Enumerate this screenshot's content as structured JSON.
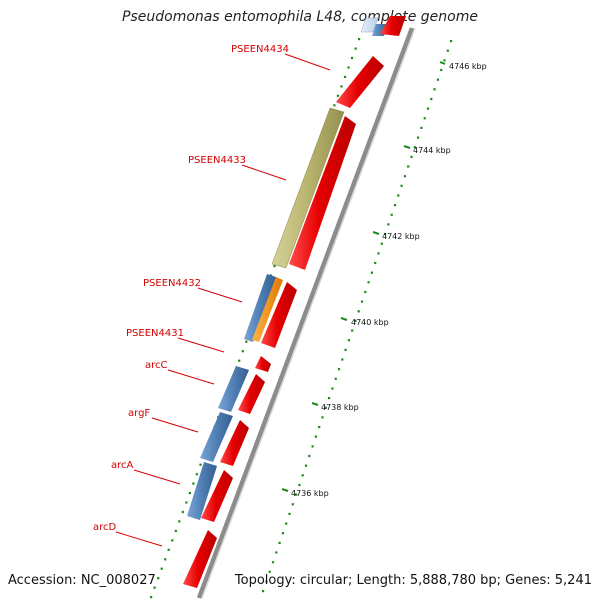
{
  "title": "Pseudomonas entomophila L48, complete genome",
  "footer": {
    "accession": "Accession: NC_008027",
    "topology": "Topology: circular; Length: 5,888,780 bp; Genes: 5,241"
  },
  "colors": {
    "label": "#d60000",
    "tick": "#1e8a1e",
    "forward_gene": "#e60000",
    "reverse_blue": "#4f7fb4",
    "reverse_olive": "#b9b46f",
    "reverse_orange": "#f08c00",
    "backbone": "#8c8c8c"
  },
  "ticks": [
    {
      "label": "4746 kbp"
    },
    {
      "label": "4744 kbp"
    },
    {
      "label": "4742 kbp"
    },
    {
      "label": "4740 kbp"
    },
    {
      "label": "4738 kbp"
    },
    {
      "label": "4736 kbp"
    }
  ],
  "labels": [
    {
      "name": "PSEEN4434"
    },
    {
      "name": "PSEEN4433"
    },
    {
      "name": "PSEEN4432"
    },
    {
      "name": "PSEEN4431"
    },
    {
      "name": "arcC"
    },
    {
      "name": "argF"
    },
    {
      "name": "arcA"
    },
    {
      "name": "arcD"
    }
  ]
}
